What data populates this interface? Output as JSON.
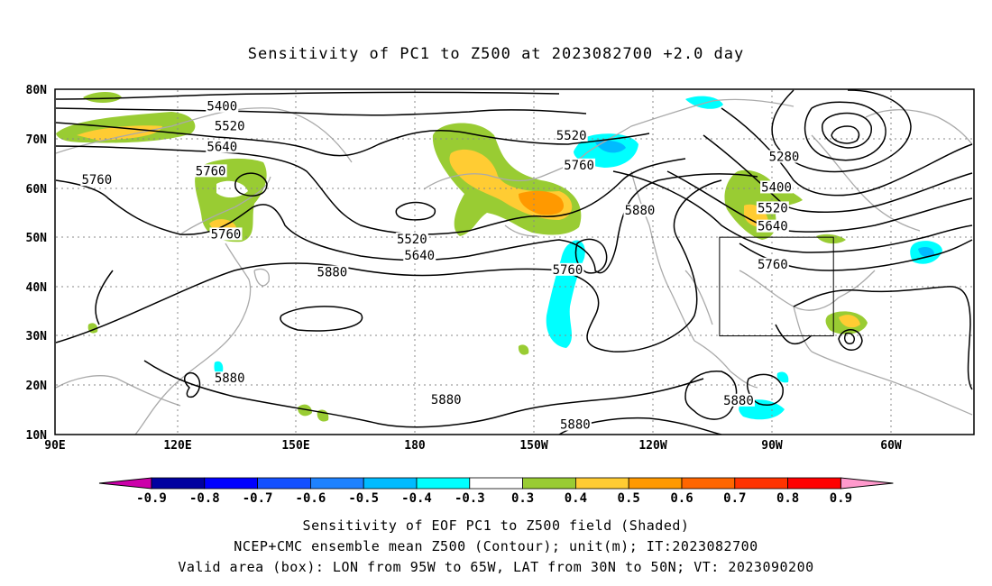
{
  "title": "Sensitivity of PC1 to Z500 at 2023082700 +2.0 day",
  "map": {
    "lon_ticks": [
      "90E",
      "120E",
      "150E",
      "180",
      "150W",
      "120W",
      "90W",
      "60W"
    ],
    "lat_ticks": [
      "80N",
      "70N",
      "60N",
      "50N",
      "40N",
      "30N",
      "20N",
      "10N"
    ],
    "contour_labels": [
      {
        "text": "5400",
        "lon": 134,
        "lat": 76.4
      },
      {
        "text": "5520",
        "lon": 136,
        "lat": 72.4
      },
      {
        "text": "5640",
        "lon": 134,
        "lat": 68.2
      },
      {
        "text": "5760",
        "lon": 101,
        "lat": 61.5
      },
      {
        "text": "5760",
        "lon": 131,
        "lat": 63.3
      },
      {
        "text": "5760",
        "lon": 135,
        "lat": 50.5
      },
      {
        "text": "5520",
        "lon": 184,
        "lat": 49.5
      },
      {
        "text": "5640",
        "lon": 186,
        "lat": 46.2
      },
      {
        "text": "5520",
        "lon": 226,
        "lat": 70.5
      },
      {
        "text": "5760",
        "lon": 228,
        "lat": 64.5
      },
      {
        "text": "5880",
        "lon": 244,
        "lat": 55.3
      },
      {
        "text": "5760",
        "lon": 225,
        "lat": 43.3
      },
      {
        "text": "5880",
        "lon": 163,
        "lat": 42.8
      },
      {
        "text": "5880",
        "lon": 136,
        "lat": 21.3
      },
      {
        "text": "5880",
        "lon": 193,
        "lat": 16.9
      },
      {
        "text": "5880",
        "lon": 227,
        "lat": 11.9
      },
      {
        "text": "5280",
        "lon": 282,
        "lat": 66.2
      },
      {
        "text": "5400",
        "lon": 280,
        "lat": 60.0
      },
      {
        "text": "5520",
        "lon": 279,
        "lat": 55.8
      },
      {
        "text": "5640",
        "lon": 279,
        "lat": 52.1
      },
      {
        "text": "5760",
        "lon": 279,
        "lat": 44.4
      },
      {
        "text": "5880",
        "lon": 270,
        "lat": 16.8
      }
    ],
    "valid_box": {
      "lon_min": 265,
      "lon_max": 295,
      "lat_min": 30,
      "lat_max": 50
    }
  },
  "colorbar": {
    "labels": [
      "-0.9",
      "-0.8",
      "-0.7",
      "-0.6",
      "-0.5",
      "-0.4",
      "-0.3",
      "0.3",
      "0.4",
      "0.5",
      "0.6",
      "0.7",
      "0.8",
      "0.9"
    ],
    "colors": [
      "#0000a0",
      "#0000ff",
      "#1450ff",
      "#1e82ff",
      "#00bbff",
      "#00ffff",
      "#ffffff",
      "#99cc33",
      "#ffcc33",
      "#ff9900",
      "#ff6600",
      "#ff3300",
      "#ff0000"
    ],
    "low_end_color": "#cc00aa",
    "high_end_color": "#ff99cc"
  },
  "captions": {
    "line1": "Sensitivity of EOF PC1 to Z500 field (Shaded)",
    "line2": "NCEP+CMC ensemble mean Z500 (Contour); unit(m); IT:2023082700",
    "line3": "Valid area (box): LON from 95W to 65W, LAT from 30N to 50N; VT: 2023090200"
  }
}
